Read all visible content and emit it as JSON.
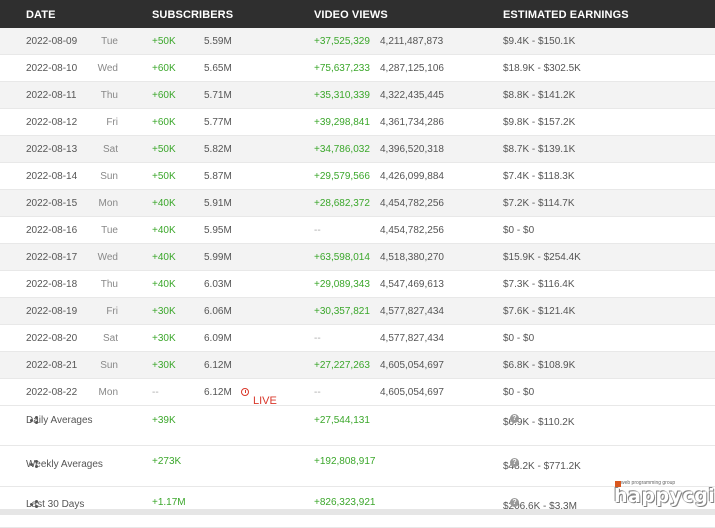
{
  "header": {
    "date": "DATE",
    "subscribers": "SUBSCRIBERS",
    "video_views": "VIDEO VIEWS",
    "earnings": "ESTIMATED EARNINGS"
  },
  "rows": [
    {
      "date": "2022-08-09",
      "day": "Tue",
      "sub_delta": "+50K",
      "subs": "5.59M",
      "live": "",
      "views_delta": "+37,525,329",
      "views": "4,211,487,873",
      "earnings": "$9.4K  -  $150.1K"
    },
    {
      "date": "2022-08-10",
      "day": "Wed",
      "sub_delta": "+60K",
      "subs": "5.65M",
      "live": "",
      "views_delta": "+75,637,233",
      "views": "4,287,125,106",
      "earnings": "$18.9K  -  $302.5K"
    },
    {
      "date": "2022-08-11",
      "day": "Thu",
      "sub_delta": "+60K",
      "subs": "5.71M",
      "live": "",
      "views_delta": "+35,310,339",
      "views": "4,322,435,445",
      "earnings": "$8.8K  -  $141.2K"
    },
    {
      "date": "2022-08-12",
      "day": "Fri",
      "sub_delta": "+60K",
      "subs": "5.77M",
      "live": "",
      "views_delta": "+39,298,841",
      "views": "4,361,734,286",
      "earnings": "$9.8K  -  $157.2K"
    },
    {
      "date": "2022-08-13",
      "day": "Sat",
      "sub_delta": "+50K",
      "subs": "5.82M",
      "live": "",
      "views_delta": "+34,786,032",
      "views": "4,396,520,318",
      "earnings": "$8.7K  -  $139.1K"
    },
    {
      "date": "2022-08-14",
      "day": "Sun",
      "sub_delta": "+50K",
      "subs": "5.87M",
      "live": "",
      "views_delta": "+29,579,566",
      "views": "4,426,099,884",
      "earnings": "$7.4K  -  $118.3K"
    },
    {
      "date": "2022-08-15",
      "day": "Mon",
      "sub_delta": "+40K",
      "subs": "5.91M",
      "live": "",
      "views_delta": "+28,682,372",
      "views": "4,454,782,256",
      "earnings": "$7.2K  -  $114.7K"
    },
    {
      "date": "2022-08-16",
      "day": "Tue",
      "sub_delta": "+40K",
      "subs": "5.95M",
      "live": "",
      "views_delta": "--",
      "views": "4,454,782,256",
      "earnings": "$0  -  $0"
    },
    {
      "date": "2022-08-17",
      "day": "Wed",
      "sub_delta": "+40K",
      "subs": "5.99M",
      "live": "",
      "views_delta": "+63,598,014",
      "views": "4,518,380,270",
      "earnings": "$15.9K  -  $254.4K"
    },
    {
      "date": "2022-08-18",
      "day": "Thu",
      "sub_delta": "+40K",
      "subs": "6.03M",
      "live": "",
      "views_delta": "+29,089,343",
      "views": "4,547,469,613",
      "earnings": "$7.3K  -  $116.4K"
    },
    {
      "date": "2022-08-19",
      "day": "Fri",
      "sub_delta": "+30K",
      "subs": "6.06M",
      "live": "",
      "views_delta": "+30,357,821",
      "views": "4,577,827,434",
      "earnings": "$7.6K  -  $121.4K"
    },
    {
      "date": "2022-08-20",
      "day": "Sat",
      "sub_delta": "+30K",
      "subs": "6.09M",
      "live": "",
      "views_delta": "--",
      "views": "4,577,827,434",
      "earnings": "$0  -  $0"
    },
    {
      "date": "2022-08-21",
      "day": "Sun",
      "sub_delta": "+30K",
      "subs": "6.12M",
      "live": "",
      "views_delta": "+27,227,263",
      "views": "4,605,054,697",
      "earnings": "$6.8K  -  $108.9K"
    },
    {
      "date": "2022-08-22",
      "day": "Mon",
      "sub_delta": "--",
      "subs": "6.12M",
      "live": "LIVE",
      "views_delta": "--",
      "views": "4,605,054,697",
      "earnings": "$0  -  $0"
    }
  ],
  "summary": [
    {
      "label": "Daily Averages",
      "subs": "+39K",
      "views": "+27,544,131",
      "earnings": "$6.9K - $110.2K",
      "help": "?"
    },
    {
      "label": "Weekly Averages",
      "subs": "+273K",
      "views": "+192,808,917",
      "earnings": "$48.2K - $771.2K",
      "help": "?"
    },
    {
      "label": "Last 30 Days",
      "subs": "+1.17M",
      "views": "+826,323,921",
      "earnings": "$206.6K - $3.3M",
      "help": "?"
    }
  ],
  "logo": {
    "tagline": "web programming group",
    "word": "happycgi"
  },
  "colors": {
    "header_bg": "#2f2f2f",
    "positive": "#3ba72b",
    "live": "#d9382b",
    "row_alt": "#f3f3f3"
  }
}
